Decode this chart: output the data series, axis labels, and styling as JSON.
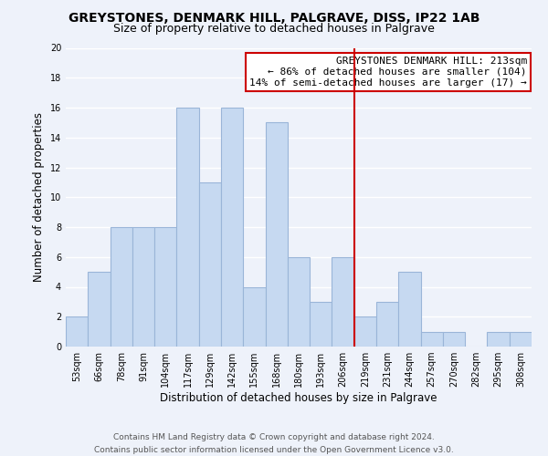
{
  "title": "GREYSTONES, DENMARK HILL, PALGRAVE, DISS, IP22 1AB",
  "subtitle": "Size of property relative to detached houses in Palgrave",
  "xlabel": "Distribution of detached houses by size in Palgrave",
  "ylabel": "Number of detached properties",
  "bar_labels": [
    "53sqm",
    "66sqm",
    "78sqm",
    "91sqm",
    "104sqm",
    "117sqm",
    "129sqm",
    "142sqm",
    "155sqm",
    "168sqm",
    "180sqm",
    "193sqm",
    "206sqm",
    "219sqm",
    "231sqm",
    "244sqm",
    "257sqm",
    "270sqm",
    "282sqm",
    "295sqm",
    "308sqm"
  ],
  "bar_values": [
    2,
    5,
    8,
    8,
    8,
    16,
    11,
    16,
    4,
    15,
    6,
    3,
    6,
    2,
    3,
    5,
    1,
    1,
    0,
    1,
    1
  ],
  "bar_color": "#c6d9f1",
  "bar_edge_color": "#9ab5d8",
  "vline_color": "#cc0000",
  "ylim": [
    0,
    20
  ],
  "yticks": [
    0,
    2,
    4,
    6,
    8,
    10,
    12,
    14,
    16,
    18,
    20
  ],
  "annotation_title": "GREYSTONES DENMARK HILL: 213sqm",
  "annotation_line1": "← 86% of detached houses are smaller (104)",
  "annotation_line2": "14% of semi-detached houses are larger (17) →",
  "annotation_box_color": "#ffffff",
  "annotation_box_edge": "#cc0000",
  "footer_line1": "Contains HM Land Registry data © Crown copyright and database right 2024.",
  "footer_line2": "Contains public sector information licensed under the Open Government Licence v3.0.",
  "background_color": "#eef2fa",
  "grid_color": "#ffffff",
  "title_fontsize": 10,
  "subtitle_fontsize": 9,
  "axis_label_fontsize": 8.5,
  "tick_fontsize": 7,
  "annotation_fontsize": 8,
  "footer_fontsize": 6.5
}
